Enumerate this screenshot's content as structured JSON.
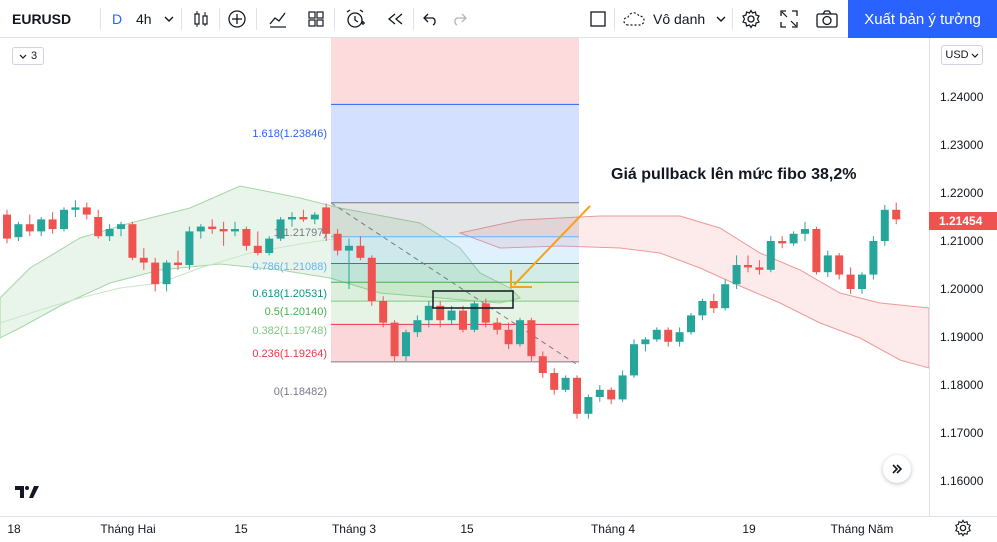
{
  "toolbar": {
    "symbol": "EURUSD",
    "resolution_d": "D",
    "resolution_4h": "4h",
    "layout_name": "Vô danh",
    "publish_label": "Xuất bản ý tưởng"
  },
  "legend_count": "3",
  "currency": "USD",
  "current_price": "1.21454",
  "price_axis": [
    "1.24000",
    "1.23000",
    "1.22000",
    "1.21000",
    "1.20000",
    "1.19000",
    "1.18000",
    "1.17000",
    "1.16000"
  ],
  "time_axis": [
    "18",
    "Tháng Hai",
    "15",
    "Tháng 3",
    "15",
    "Tháng 4",
    "19",
    "Tháng Năm"
  ],
  "annotation": "Giá pullback lên mức fibo 38,2%",
  "fib_levels": [
    {
      "label": "1.618(1.23846)",
      "value": 1.23846,
      "color": "#2962ff"
    },
    {
      "label": "1(1.21797)",
      "value": 1.21797,
      "color": "#787b86"
    },
    {
      "label": "0.786(1.21088)",
      "value": 1.21088,
      "color": "#64b5f6"
    },
    {
      "label": "0.618(1.20531)",
      "value": 1.20531,
      "color": "#089981"
    },
    {
      "label": "0.5(1.20140)",
      "value": 1.2014,
      "color": "#4caf50"
    },
    {
      "label": "0.382(1.19748)",
      "value": 1.19748,
      "color": "#81c784"
    },
    {
      "label": "0.236(1.19264)",
      "value": 1.19264,
      "color": "#f23645"
    },
    {
      "label": "0(1.18482)",
      "value": 1.18482,
      "color": "#787b86"
    }
  ],
  "colors": {
    "up": "#26a69a",
    "down": "#ef5350",
    "accent": "#2962ff",
    "arrow": "#f7a21b"
  },
  "icons": [
    "bar-style-icon",
    "indicators-icon",
    "compare-icon",
    "templates-icon",
    "alert-icon",
    "replay-icon",
    "undo-icon",
    "redo-icon",
    "fullscreen-icon",
    "settings-icon",
    "snapshot-icon"
  ],
  "candles": [
    [
      1.2155,
      1.2165,
      1.2095,
      1.2105
    ],
    [
      1.2108,
      1.214,
      1.21,
      1.2135
    ],
    [
      1.2135,
      1.2155,
      1.211,
      1.212
    ],
    [
      1.212,
      1.215,
      1.211,
      1.2145
    ],
    [
      1.2145,
      1.216,
      1.2115,
      1.2125
    ],
    [
      1.2125,
      1.217,
      1.212,
      1.2165
    ],
    [
      1.2165,
      1.2185,
      1.215,
      1.217
    ],
    [
      1.217,
      1.218,
      1.2145,
      1.2155
    ],
    [
      1.215,
      1.2165,
      1.2105,
      1.211
    ],
    [
      1.211,
      1.2135,
      1.21,
      1.2125
    ],
    [
      1.2125,
      1.214,
      1.211,
      1.2135
    ],
    [
      1.2135,
      1.214,
      1.206,
      1.2065
    ],
    [
      1.2065,
      1.2085,
      1.204,
      1.2055
    ],
    [
      1.2055,
      1.2065,
      1.1995,
      1.201
    ],
    [
      1.201,
      1.206,
      1.1995,
      1.2055
    ],
    [
      1.2055,
      1.208,
      1.204,
      1.205
    ],
    [
      1.205,
      1.213,
      1.204,
      1.212
    ],
    [
      1.212,
      1.2135,
      1.2105,
      1.213
    ],
    [
      1.213,
      1.2145,
      1.2115,
      1.2125
    ],
    [
      1.2125,
      1.214,
      1.209,
      1.212
    ],
    [
      1.212,
      1.214,
      1.211,
      1.2125
    ],
    [
      1.2125,
      1.213,
      1.208,
      1.209
    ],
    [
      1.209,
      1.212,
      1.207,
      1.2075
    ],
    [
      1.2075,
      1.211,
      1.207,
      1.2105
    ],
    [
      1.2105,
      1.215,
      1.21,
      1.2145
    ],
    [
      1.2145,
      1.216,
      1.213,
      1.215
    ],
    [
      1.215,
      1.2165,
      1.214,
      1.2145
    ],
    [
      1.2145,
      1.216,
      1.2135,
      1.2155
    ],
    [
      1.217,
      1.2178,
      1.21,
      1.2115
    ],
    [
      1.2115,
      1.2125,
      1.207,
      1.208
    ],
    [
      1.208,
      1.2105,
      1.2,
      1.209
    ],
    [
      1.209,
      1.211,
      1.206,
      1.2065
    ],
    [
      1.2065,
      1.207,
      1.1965,
      1.1975
    ],
    [
      1.1975,
      1.1985,
      1.192,
      1.193
    ],
    [
      1.193,
      1.1935,
      1.185,
      1.186
    ],
    [
      1.186,
      1.1915,
      1.185,
      1.191
    ],
    [
      1.191,
      1.1945,
      1.19,
      1.1935
    ],
    [
      1.1935,
      1.1975,
      1.192,
      1.1965
    ],
    [
      1.1965,
      1.1975,
      1.192,
      1.1935
    ],
    [
      1.1935,
      1.1965,
      1.1925,
      1.1955
    ],
    [
      1.1955,
      1.1965,
      1.191,
      1.1915
    ],
    [
      1.1915,
      1.1975,
      1.191,
      1.197
    ],
    [
      1.197,
      1.198,
      1.192,
      1.193
    ],
    [
      1.193,
      1.194,
      1.1905,
      1.1915
    ],
    [
      1.1915,
      1.193,
      1.1875,
      1.1885
    ],
    [
      1.1885,
      1.194,
      1.188,
      1.1935
    ],
    [
      1.1935,
      1.194,
      1.185,
      1.186
    ],
    [
      1.186,
      1.187,
      1.1815,
      1.1825
    ],
    [
      1.1825,
      1.1835,
      1.178,
      1.179
    ],
    [
      1.179,
      1.182,
      1.1785,
      1.1815
    ],
    [
      1.1815,
      1.182,
      1.173,
      1.174
    ],
    [
      1.174,
      1.178,
      1.173,
      1.1775
    ],
    [
      1.1775,
      1.18,
      1.1765,
      1.179
    ],
    [
      1.179,
      1.1795,
      1.176,
      1.177
    ],
    [
      1.177,
      1.183,
      1.1765,
      1.182
    ],
    [
      1.182,
      1.1895,
      1.1815,
      1.1885
    ],
    [
      1.1885,
      1.19,
      1.187,
      1.1895
    ],
    [
      1.1895,
      1.192,
      1.189,
      1.1915
    ],
    [
      1.1915,
      1.192,
      1.188,
      1.189
    ],
    [
      1.189,
      1.192,
      1.188,
      1.191
    ],
    [
      1.191,
      1.195,
      1.1905,
      1.1945
    ],
    [
      1.1945,
      1.198,
      1.1935,
      1.1975
    ],
    [
      1.1975,
      1.199,
      1.195,
      1.196
    ],
    [
      1.196,
      1.202,
      1.1955,
      1.201
    ],
    [
      1.201,
      1.207,
      1.2,
      1.205
    ],
    [
      1.205,
      1.207,
      1.2035,
      1.2045
    ],
    [
      1.2045,
      1.206,
      1.203,
      1.204
    ],
    [
      1.204,
      1.211,
      1.2035,
      1.21
    ],
    [
      1.21,
      1.211,
      1.2085,
      1.2095
    ],
    [
      1.2095,
      1.212,
      1.209,
      1.2115
    ],
    [
      1.2115,
      1.214,
      1.21,
      1.2125
    ],
    [
      1.2125,
      1.213,
      1.203,
      1.2035
    ],
    [
      1.2035,
      1.208,
      1.2025,
      1.207
    ],
    [
      1.207,
      1.2075,
      1.202,
      1.203
    ],
    [
      1.203,
      1.2045,
      1.199,
      1.2
    ],
    [
      1.2,
      1.2035,
      1.199,
      1.203
    ],
    [
      1.203,
      1.211,
      1.202,
      1.21
    ],
    [
      1.21,
      1.2175,
      1.209,
      1.2165
    ],
    [
      1.2165,
      1.218,
      1.2135,
      1.2145
    ]
  ]
}
